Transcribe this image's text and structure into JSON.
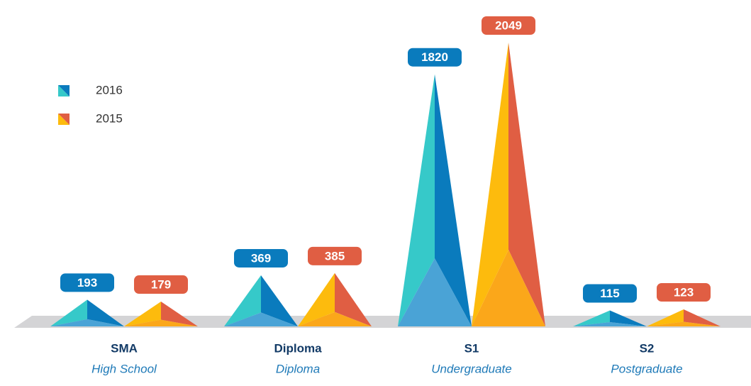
{
  "chart_data": {
    "type": "pyramid_bar",
    "categories": [
      "SMA",
      "Diploma",
      "S1",
      "S2"
    ],
    "category_descriptions": [
      "High School",
      "Diploma",
      "Undergraduate",
      "Postgraduate"
    ],
    "series": [
      {
        "name": "2016",
        "color": "#0a7bbd",
        "face_colors": [
          "#36c9c9",
          "#0a7bbd",
          "#4aa3d6"
        ],
        "values": [
          193,
          369,
          1820,
          115
        ]
      },
      {
        "name": "2015",
        "color": "#e05e43",
        "face_colors": [
          "#fdbb0d",
          "#e05e43",
          "#fba71a"
        ],
        "values": [
          179,
          385,
          2049,
          123
        ]
      }
    ],
    "legend": "upper left"
  }
}
